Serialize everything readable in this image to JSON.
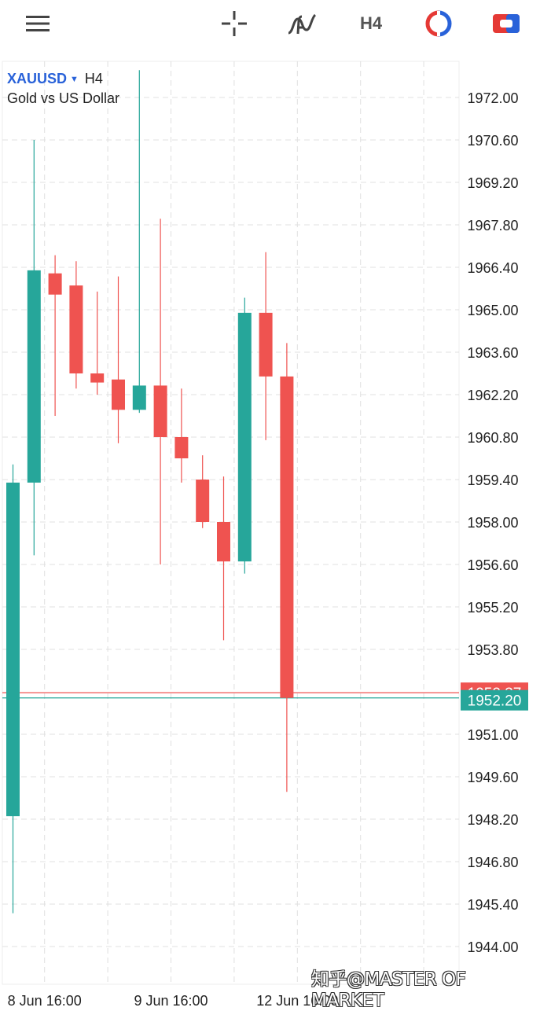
{
  "toolbar": {
    "items": [
      {
        "name": "menu",
        "icon": "hamburger-menu-icon"
      },
      {
        "name": "crosshair",
        "icon": "crosshair-icon"
      },
      {
        "name": "indicators",
        "icon": "indicator-f-icon"
      },
      {
        "name": "timeframe",
        "label": "H4"
      },
      {
        "name": "trade",
        "icon": "trade-circle-icon"
      },
      {
        "name": "account",
        "icon": "account-toggle-icon"
      }
    ]
  },
  "symbol": {
    "ticker": "XAUUSD",
    "timeframe": "H4",
    "description": "Gold vs US Dollar"
  },
  "watermark": "知乎@MASTER OF MARKET",
  "colors": {
    "up": "#26a69a",
    "down": "#ef5350",
    "symbol": "#2962d9",
    "grid": "#e0e0e0"
  },
  "chart_data": {
    "type": "candlestick",
    "symbol": "XAUUSD",
    "timeframe": "H4",
    "title": "Gold vs US Dollar",
    "ylim": [
      1943.4,
      1975.0
    ],
    "y_ticks": [
      1972.0,
      1970.6,
      1969.2,
      1967.8,
      1966.4,
      1965.0,
      1963.6,
      1962.2,
      1960.8,
      1959.4,
      1958.0,
      1956.6,
      1955.2,
      1953.8,
      1951.0,
      1949.6,
      1948.2,
      1946.8,
      1945.4,
      1944.0
    ],
    "y_tick_labels": [
      "1972.00",
      "1970.60",
      "1969.20",
      "1967.80",
      "1966.40",
      "1965.00",
      "1963.60",
      "1962.20",
      "1960.80",
      "1959.40",
      "1958.00",
      "1956.60",
      "1955.20",
      "1953.80",
      "1951.00",
      "1949.60",
      "1948.20",
      "1946.80",
      "1945.40",
      "1944.00"
    ],
    "x_tick_labels": [
      {
        "label": "8 Jun 16:00",
        "index": 1.5
      },
      {
        "label": "9 Jun 16:00",
        "index": 7.5
      },
      {
        "label": "12 Jun 16:00",
        "index": 13.5
      }
    ],
    "candles": [
      {
        "o": 1948.3,
        "h": 1959.9,
        "l": 1945.1,
        "c": 1959.3
      },
      {
        "o": 1959.3,
        "h": 1970.6,
        "l": 1956.9,
        "c": 1966.3
      },
      {
        "o": 1966.2,
        "h": 1966.8,
        "l": 1961.5,
        "c": 1965.5
      },
      {
        "o": 1965.8,
        "h": 1966.6,
        "l": 1962.4,
        "c": 1962.9
      },
      {
        "o": 1962.9,
        "h": 1965.6,
        "l": 1962.2,
        "c": 1962.6
      },
      {
        "o": 1962.7,
        "h": 1966.1,
        "l": 1960.6,
        "c": 1961.7
      },
      {
        "o": 1961.7,
        "h": 1972.9,
        "l": 1961.6,
        "c": 1962.5
      },
      {
        "o": 1962.5,
        "h": 1968.0,
        "l": 1956.6,
        "c": 1960.8
      },
      {
        "o": 1960.8,
        "h": 1962.4,
        "l": 1959.3,
        "c": 1960.1
      },
      {
        "o": 1959.4,
        "h": 1960.2,
        "l": 1957.8,
        "c": 1958.0
      },
      {
        "o": 1958.0,
        "h": 1959.5,
        "l": 1954.1,
        "c": 1956.7
      },
      {
        "o": 1956.7,
        "h": 1965.4,
        "l": 1956.3,
        "c": 1964.9
      },
      {
        "o": 1964.9,
        "h": 1966.9,
        "l": 1960.7,
        "c": 1962.8
      },
      {
        "o": 1962.8,
        "h": 1963.9,
        "l": 1949.1,
        "c": 1952.2
      }
    ],
    "bid_price": 1952.2,
    "bid_label": "1952.20",
    "ask_price": 1952.37,
    "ask_label": "1952.37"
  }
}
